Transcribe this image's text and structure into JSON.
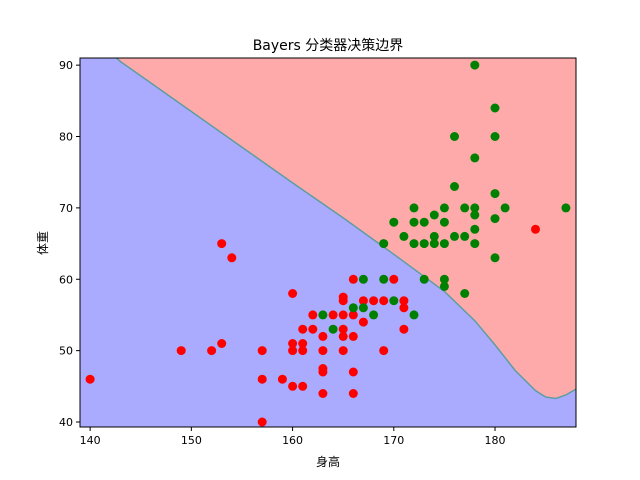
{
  "chart_data": {
    "type": "scatter",
    "title": "Bayers 分类器决策边界",
    "xlabel": "身高",
    "ylabel": "体重",
    "xlim": [
      139,
      188
    ],
    "ylim": [
      39.3,
      91
    ],
    "x_ticks": [
      140,
      150,
      160,
      170,
      180
    ],
    "y_ticks": [
      40,
      50,
      60,
      70,
      80,
      90
    ],
    "grid": false,
    "legend": "none",
    "regions": {
      "upper_color": "#ffaaaa",
      "lower_color": "#aaaaff",
      "boundary_color": "#5f9ea0",
      "boundary": [
        [
          141,
          93
        ],
        [
          143,
          90.5
        ],
        [
          146,
          87.5
        ],
        [
          150,
          83.5
        ],
        [
          155,
          78.5
        ],
        [
          160,
          73.5
        ],
        [
          165,
          68.6
        ],
        [
          170,
          63.5
        ],
        [
          175,
          58.3
        ],
        [
          178,
          54.2
        ],
        [
          180,
          50.8
        ],
        [
          182,
          47.2
        ],
        [
          184,
          44.4
        ],
        [
          185,
          43.5
        ],
        [
          186,
          43.3
        ],
        [
          187,
          43.8
        ],
        [
          188,
          44.6
        ]
      ]
    },
    "series": [
      {
        "color": "#ff0000",
        "points": [
          [
            140,
            46
          ],
          [
            149,
            50
          ],
          [
            152,
            50
          ],
          [
            153,
            51
          ],
          [
            153,
            65
          ],
          [
            154,
            63
          ],
          [
            157,
            50
          ],
          [
            157,
            46
          ],
          [
            157,
            40
          ],
          [
            159,
            46
          ],
          [
            160,
            45
          ],
          [
            160,
            50
          ],
          [
            160,
            51
          ],
          [
            160,
            58
          ],
          [
            161,
            45
          ],
          [
            161,
            50
          ],
          [
            161,
            51
          ],
          [
            161,
            53
          ],
          [
            162,
            53
          ],
          [
            162,
            55
          ],
          [
            163,
            44
          ],
          [
            163,
            47
          ],
          [
            163,
            47.5
          ],
          [
            163,
            50
          ],
          [
            163,
            52
          ],
          [
            164,
            55
          ],
          [
            165,
            50
          ],
          [
            165,
            52
          ],
          [
            165,
            53
          ],
          [
            165,
            55
          ],
          [
            165,
            57
          ],
          [
            165,
            57.5
          ],
          [
            166,
            44
          ],
          [
            166,
            47
          ],
          [
            166,
            52
          ],
          [
            166,
            55
          ],
          [
            166,
            60
          ],
          [
            167,
            54
          ],
          [
            167,
            57
          ],
          [
            168,
            57
          ],
          [
            169,
            57
          ],
          [
            169,
            50
          ],
          [
            170,
            60
          ],
          [
            171,
            53
          ],
          [
            171,
            56
          ],
          [
            171,
            57
          ],
          [
            184,
            67
          ]
        ]
      },
      {
        "color": "#008000",
        "points": [
          [
            163,
            55
          ],
          [
            164,
            53
          ],
          [
            166,
            56
          ],
          [
            167,
            56
          ],
          [
            167,
            60
          ],
          [
            168,
            55
          ],
          [
            169,
            60
          ],
          [
            169,
            65
          ],
          [
            170,
            57
          ],
          [
            170,
            68
          ],
          [
            171,
            66
          ],
          [
            172,
            55
          ],
          [
            172,
            65
          ],
          [
            172,
            68
          ],
          [
            172,
            70
          ],
          [
            173,
            60
          ],
          [
            173,
            65
          ],
          [
            173,
            68
          ],
          [
            174,
            65
          ],
          [
            174,
            66
          ],
          [
            174,
            69
          ],
          [
            175,
            59
          ],
          [
            175,
            60
          ],
          [
            175,
            65
          ],
          [
            175,
            68
          ],
          [
            175,
            70
          ],
          [
            176,
            66
          ],
          [
            176,
            73
          ],
          [
            176,
            80
          ],
          [
            177,
            58
          ],
          [
            177,
            66
          ],
          [
            177,
            70
          ],
          [
            178,
            65
          ],
          [
            178,
            67
          ],
          [
            178,
            69
          ],
          [
            178,
            70
          ],
          [
            178,
            77
          ],
          [
            178,
            90
          ],
          [
            180,
            63
          ],
          [
            180,
            68.5
          ],
          [
            180,
            72
          ],
          [
            180,
            80
          ],
          [
            180,
            84
          ],
          [
            181,
            70
          ],
          [
            187,
            70
          ]
        ]
      }
    ]
  }
}
